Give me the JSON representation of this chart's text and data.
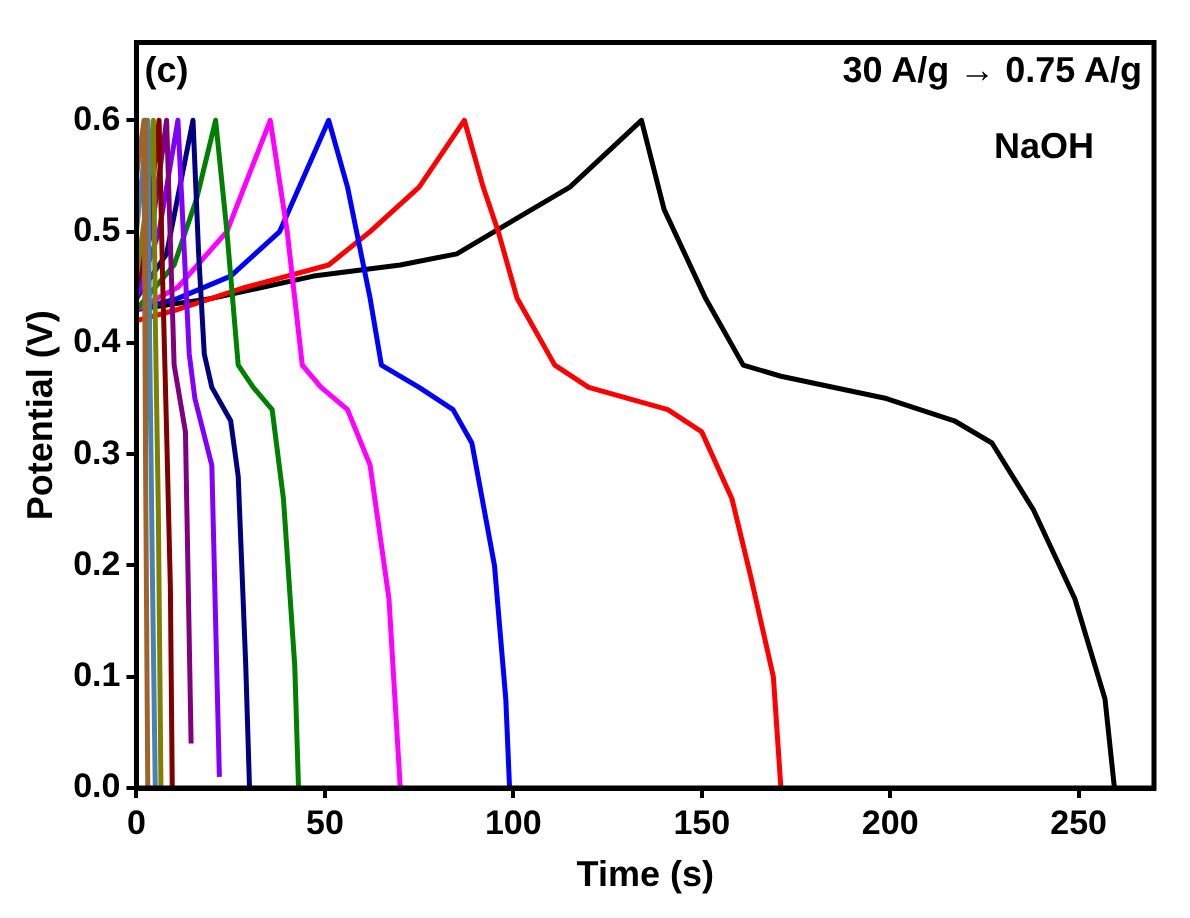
{
  "chart_data": {
    "type": "line",
    "xlabel": "Time (s)",
    "ylabel": "Potential (V)",
    "annotations": [
      "(c)",
      "30 A/g → 0.75 A/g",
      "NaOH"
    ],
    "xlim": [
      0,
      270
    ],
    "xticks": [
      0,
      50,
      100,
      150,
      200,
      250
    ],
    "ylim": [
      0,
      0.67
    ],
    "yticks": [
      {
        "value": 0,
        "label": "0.0"
      },
      0.1,
      0.2,
      0.3,
      0.4,
      0.5,
      0.6
    ],
    "grid": false,
    "marker": "none",
    "line_style": "solid",
    "series": [
      {
        "color": "#000000",
        "x": [
          0,
          20,
          47,
          70,
          85,
          100,
          115,
          134,
          140,
          151,
          161,
          171,
          199,
          217,
          227,
          238,
          249,
          257,
          259.5
        ],
        "values": [
          0.43,
          0.44,
          0.46,
          0.47,
          0.48,
          0.51,
          0.54,
          0.6,
          0.52,
          0.44,
          0.38,
          0.37,
          0.35,
          0.33,
          0.31,
          0.25,
          0.17,
          0.08,
          0
        ]
      },
      {
        "color": "#ff0000",
        "x": [
          0,
          11,
          29,
          51,
          62,
          75,
          87,
          92,
          96,
          101,
          111,
          120,
          141,
          150,
          158,
          163,
          169,
          171
        ],
        "values": [
          0.42,
          0.43,
          0.45,
          0.47,
          0.5,
          0.54,
          0.6,
          0.54,
          0.5,
          0.44,
          0.38,
          0.36,
          0.34,
          0.32,
          0.26,
          0.19,
          0.1,
          0
        ]
      },
      {
        "color": "#0000ff",
        "x": [
          0,
          11,
          25,
          38,
          51,
          56,
          62,
          65,
          75,
          84,
          89,
          95,
          98,
          99
        ],
        "values": [
          0.43,
          0.44,
          0.46,
          0.5,
          0.6,
          0.54,
          0.44,
          0.38,
          0.36,
          0.34,
          0.31,
          0.2,
          0.08,
          0
        ]
      },
      {
        "color": "#ff00ff",
        "x": [
          0,
          11,
          24,
          35.5,
          40,
          44,
          49,
          56,
          62,
          67,
          70
        ],
        "values": [
          0.43,
          0.45,
          0.5,
          0.6,
          0.5,
          0.38,
          0.36,
          0.34,
          0.29,
          0.17,
          0
        ]
      },
      {
        "color": "#008000",
        "x": [
          0,
          10,
          16,
          21,
          24,
          27,
          31,
          36,
          39,
          42,
          43
        ],
        "values": [
          0.43,
          0.47,
          0.53,
          0.6,
          0.5,
          0.38,
          0.36,
          0.34,
          0.26,
          0.11,
          0
        ]
      },
      {
        "color": "#000080",
        "x": [
          0,
          8,
          15,
          16.5,
          18,
          20,
          25,
          27,
          29,
          30
        ],
        "values": [
          0.44,
          0.48,
          0.6,
          0.48,
          0.39,
          0.36,
          0.33,
          0.28,
          0.11,
          0
        ]
      },
      {
        "color": "#8000ff",
        "x": [
          0,
          6,
          11,
          14,
          15.5,
          20,
          22
        ],
        "values": [
          0.44,
          0.5,
          0.6,
          0.39,
          0.35,
          0.29,
          0.01
        ]
      },
      {
        "color": "#800080",
        "x": [
          0,
          4,
          8,
          10,
          13,
          14.5
        ],
        "values": [
          0.45,
          0.5,
          0.6,
          0.38,
          0.32,
          0.04
        ]
      },
      {
        "color": "#800000",
        "x": [
          0,
          3,
          6,
          7,
          8,
          9,
          9.5
        ],
        "values": [
          0.45,
          0.5,
          0.6,
          0.45,
          0.32,
          0.18,
          0
        ]
      },
      {
        "color": "#808000",
        "x": [
          0,
          2.5,
          4.5,
          5,
          5.8,
          6.5
        ],
        "values": [
          0.46,
          0.52,
          0.6,
          0.42,
          0.25,
          0
        ]
      },
      {
        "color": "#4682b4",
        "x": [
          0,
          3,
          3.5,
          4.2,
          5
        ],
        "values": [
          0.5,
          0.6,
          0.4,
          0.2,
          0
        ]
      },
      {
        "color": "#a0642a",
        "x": [
          0,
          2,
          2.4,
          3
        ],
        "values": [
          0.55,
          0.6,
          0.3,
          0
        ]
      }
    ]
  }
}
